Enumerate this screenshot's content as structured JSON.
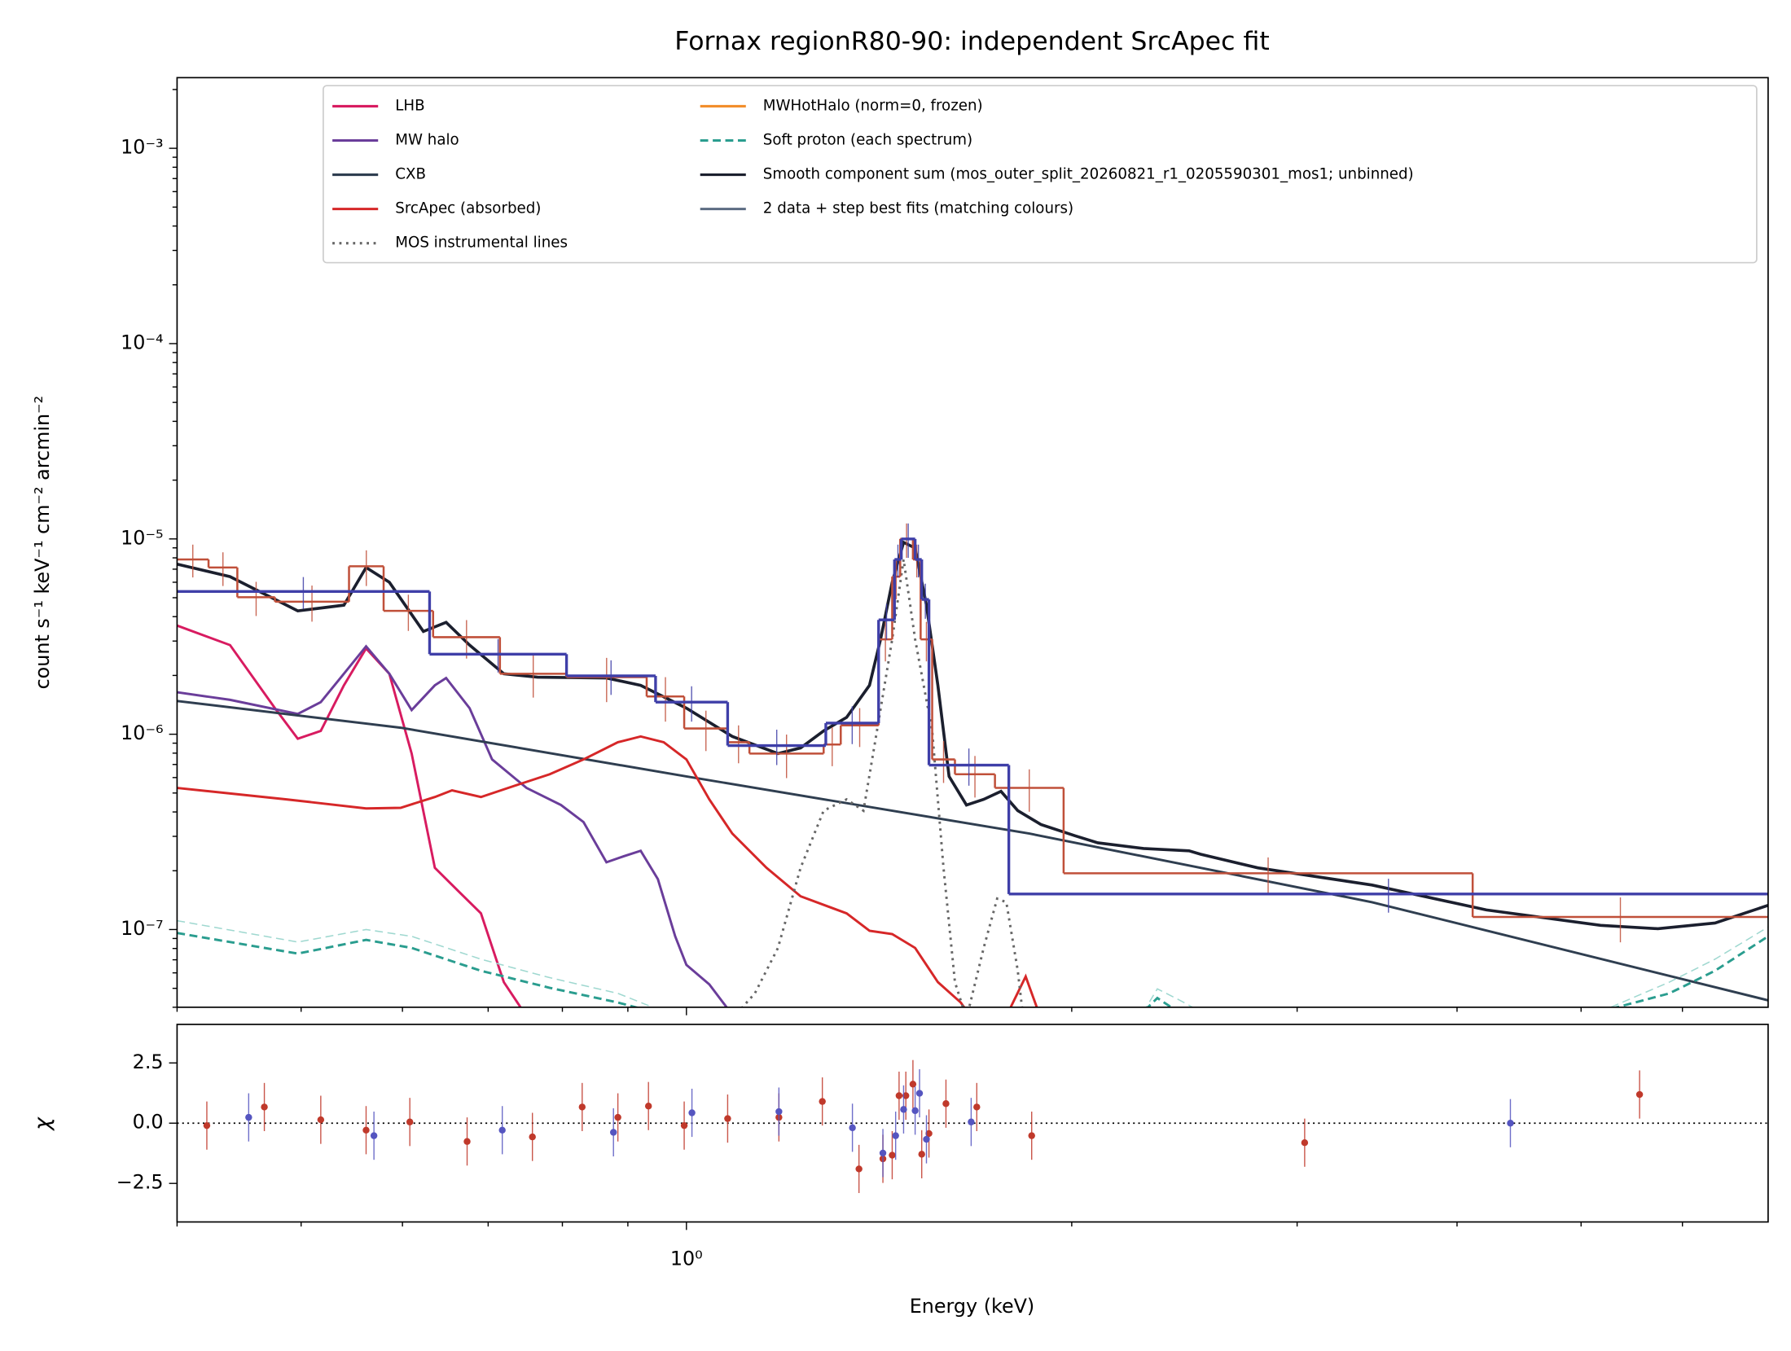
{
  "chart_data": [
    {
      "type": "line",
      "title": "Fornax regionR80-90: independent SrcApec fit",
      "ylabel": "count s⁻¹ keV⁻¹ cm⁻² arcmin⁻²",
      "xscale": "log",
      "yscale": "log",
      "xlim": [
        0.4,
        7.0
      ],
      "ylim": [
        4e-08,
        0.0023
      ],
      "xtickmarks": [
        1
      ],
      "xminorticks": [
        0.4,
        0.5,
        0.6,
        0.7,
        0.8,
        0.9,
        2,
        3,
        4,
        5,
        6
      ],
      "yticks": [
        {
          "value": 1e-07,
          "label": "10⁻⁷"
        },
        {
          "value": 1e-06,
          "label": "10⁻⁶"
        },
        {
          "value": 1e-05,
          "label": "10⁻⁵"
        },
        {
          "value": 0.0001,
          "label": "10⁻⁴"
        },
        {
          "value": 0.001,
          "label": "10⁻³"
        }
      ],
      "yminorticks": [
        4e-08,
        5e-08,
        6e-08,
        7e-08,
        8e-08,
        9e-08,
        2e-07,
        3e-07,
        4e-07,
        5e-07,
        6e-07,
        7e-07,
        8e-07,
        9e-07,
        2e-06,
        3e-06,
        4e-06,
        5e-06,
        6e-06,
        7e-06,
        8e-06,
        9e-06,
        2e-05,
        3e-05,
        4e-05,
        5e-05,
        6e-05,
        7e-05,
        8e-05,
        9e-05,
        0.0002,
        0.0003,
        0.0004,
        0.0005,
        0.0006,
        0.0007,
        0.0008,
        0.0009,
        0.002
      ],
      "legend": "upper right",
      "series": [
        {
          "name": "LHB",
          "color": "#d81b60",
          "dash": "solid",
          "x": [
            0.4,
            0.44,
            0.477,
            0.497,
            0.518,
            0.54,
            0.562,
            0.586,
            0.61,
            0.636,
            0.663,
            0.691,
            0.72,
            0.742
          ],
          "values": [
            3.6e-06,
            2.86e-06,
            1.36e-06,
            9.48e-07,
            1.04e-06,
            1.78e-06,
            2.75e-06,
            2.04e-06,
            7.96e-07,
            2.07e-07,
            1.58e-07,
            1.21e-07,
            5.38e-08,
            4e-08
          ]
        },
        {
          "name": "MW halo",
          "color": "#6a3d9a",
          "dash": "solid",
          "x": [
            0.4,
            0.44,
            0.497,
            0.518,
            0.54,
            0.562,
            0.586,
            0.61,
            0.636,
            0.649,
            0.677,
            0.705,
            0.75,
            0.798,
            0.831,
            0.866,
            0.893,
            0.921,
            0.95,
            0.98,
            1.0,
            1.042,
            1.075
          ],
          "values": [
            1.64e-06,
            1.5e-06,
            1.27e-06,
            1.46e-06,
            2.04e-06,
            2.82e-06,
            2.04e-06,
            1.33e-06,
            1.78e-06,
            1.94e-06,
            1.36e-06,
            7.43e-07,
            5.31e-07,
            4.34e-07,
            3.55e-07,
            2.21e-07,
            2.37e-07,
            2.53e-07,
            1.81e-07,
            9.23e-08,
            6.59e-08,
            5.24e-08,
            4e-08
          ]
        },
        {
          "name": "CXB",
          "color": "#2f3e50",
          "dash": "solid",
          "x": [
            0.4,
            0.598,
            1.0,
            1.853,
            3.433,
            7.0
          ],
          "values": [
            1.48e-06,
            1.08e-06,
            6.08e-07,
            3.1e-07,
            1.38e-07,
            4.34e-08
          ]
        },
        {
          "name": "SrcApec (absorbed)",
          "color": "#d62728",
          "dash": "solid",
          "x": [
            0.4,
            0.487,
            0.562,
            0.598,
            0.636,
            0.656,
            0.691,
            0.735,
            0.782,
            0.831,
            0.884,
            0.921,
            0.96,
            1.0,
            1.042,
            1.086,
            1.155,
            1.228,
            1.334,
            1.39,
            1.448,
            1.509,
            1.572,
            1.638,
            1.672,
            1.778,
            1.841,
            1.892
          ],
          "values": [
            5.31e-07,
            4.64e-07,
            4.17e-07,
            4.2e-07,
            4.77e-07,
            5.16e-07,
            4.77e-07,
            5.46e-07,
            6.24e-07,
            7.43e-07,
            9.1e-07,
            9.74e-07,
            9.1e-07,
            7.43e-07,
            4.64e-07,
            3.1e-07,
            2.07e-07,
            1.48e-07,
            1.21e-07,
            9.86e-08,
            9.48e-08,
            8.05e-08,
            5.38e-08,
            4.23e-08,
            3.5e-08,
            3.6e-08,
            5.75e-08,
            3.5e-08
          ]
        },
        {
          "name": "MOS instrumental lines",
          "color": "#666666",
          "dash": "dotted",
          "x": [
            1.086,
            1.131,
            1.179,
            1.228,
            1.28,
            1.334,
            1.375,
            1.404,
            1.448,
            1.478,
            1.509,
            1.556,
            1.588,
            1.621,
            1.655,
            1.707,
            1.749,
            1.778,
            1.815,
            1.833
          ],
          "values": [
            3.5e-08,
            4.71e-08,
            8.05e-08,
            2.07e-07,
            4.06e-07,
            4.64e-07,
            4.06e-07,
            9.1e-07,
            3.06e-06,
            7.85e-06,
            3.06e-06,
            1.04e-06,
            2.07e-07,
            5.38e-08,
            3.5e-08,
            8.05e-08,
            1.44e-07,
            1.38e-07,
            6.15e-08,
            3.5e-08
          ]
        },
        {
          "name": "MWHotHalo (norm=0, frozen)",
          "color": "#f28e2b",
          "dash": "solid"
        },
        {
          "name": "Soft proton (each spectrum)",
          "color": "#2a9d8f",
          "dash": "dashed",
          "x": [
            0.4,
            0.497,
            0.562,
            0.61,
            0.691,
            0.782,
            0.884,
            0.94,
            1.5,
            2.276,
            2.333,
            2.42,
            3.5,
            5.179,
            5.86,
            6.362,
            7.0
          ],
          "values": [
            9.6e-08,
            7.53e-08,
            8.85e-08,
            8.05e-08,
            6.15e-08,
            5.03e-08,
            4.23e-08,
            3.8e-08,
            2e-08,
            3.8e-08,
            4.46e-08,
            3.8e-08,
            2e-08,
            3.8e-08,
            4.71e-08,
            6.15e-08,
            9.23e-08
          ]
        },
        {
          "name": "Smooth component sum (mos_outer_split_20260821_r1_0205590301_mos1; unbinned)",
          "color": "#1b1f2e",
          "dash": "solid",
          "x": [
            0.4,
            0.44,
            0.497,
            0.54,
            0.562,
            0.586,
            0.623,
            0.649,
            0.677,
            0.72,
            0.765,
            0.866,
            0.921,
            1.0,
            1.086,
            1.179,
            1.228,
            1.28,
            1.334,
            1.39,
            1.418,
            1.448,
            1.478,
            1.509,
            1.54,
            1.572,
            1.604,
            1.655,
            1.707,
            1.761,
            1.815,
            1.892,
            2.012,
            2.096,
            2.276,
            2.47,
            2.522,
            2.795,
            3.433,
            4.217,
            5.179,
            5.74,
            6.362,
            7.0
          ],
          "values": [
            7.43e-06,
            6.41e-06,
            4.28e-06,
            4.58e-06,
            7.14e-06,
            6e-06,
            3.36e-06,
            3.74e-06,
            2.86e-06,
            2.04e-06,
            1.96e-06,
            1.94e-06,
            1.78e-06,
            1.36e-06,
            9.74e-07,
            7.96e-07,
            8.51e-07,
            1.04e-06,
            1.22e-06,
            1.78e-06,
            3.06e-06,
            6e-06,
            9.6e-06,
            8.98e-06,
            4.58e-06,
            1.78e-06,
            6.08e-07,
            4.34e-07,
            4.64e-07,
            5.1e-07,
            4.06e-07,
            3.45e-07,
            3.02e-07,
            2.78e-07,
            2.6e-07,
            2.53e-07,
            2.43e-07,
            2.07e-07,
            1.69e-07,
            1.26e-07,
            1.05e-07,
            1.01e-07,
            1.08e-07,
            1.33e-07
          ]
        },
        {
          "color": "#9fd8d0",
          "dash": "dashed",
          "x": [
            0.4,
            0.497,
            0.562,
            0.61,
            0.691,
            0.782,
            0.884,
            0.96,
            1.5,
            2.276,
            2.333,
            2.42,
            2.522,
            3.5,
            5.179,
            5.86,
            6.362,
            7.0
          ],
          "values": [
            1.11e-07,
            8.63e-08,
            1e-07,
            9.23e-08,
            7.05e-08,
            5.67e-08,
            4.71e-08,
            3.8e-08,
            2e-08,
            3.8e-08,
            4.97e-08,
            4.4e-08,
            3.8e-08,
            2e-08,
            3.8e-08,
            5.38e-08,
            7.05e-08,
            1.03e-07
          ]
        }
      ],
      "data_legend": {
        "name": "2 data + step best fits (matching colours)",
        "color": "#5b6b82"
      },
      "data": [
        {
          "color": "#c0503a",
          "bins": [
            0.4,
            0.4233,
            0.4458,
            0.477,
            0.545,
            0.58,
            0.634,
            0.715,
            0.806,
            0.931,
            0.996,
            1.077,
            1.12,
            1.28,
            1.32,
            1.413,
            1.448,
            1.469,
            1.503,
            1.524,
            1.556,
            1.621,
            1.742,
            1.971,
            4.114,
            7.0
          ],
          "values": [
            7.85e-06,
            7.14e-06,
            5.03e-06,
            4.77e-06,
            7.24e-06,
            4.28e-06,
            3.14e-06,
            2.04e-06,
            1.96e-06,
            1.56e-06,
            1.07e-06,
            9.1e-07,
            7.96e-07,
            8.86e-07,
            1.11e-06,
            3.06e-06,
            6.41e-06,
            1e-05,
            7.85e-06,
            3.06e-06,
            7.43e-07,
            6.24e-07,
            5.31e-07,
            1.94e-07,
            1.16e-07
          ],
          "errors": [
            1.5e-06,
            1.4e-06,
            1e-06,
            1e-06,
            1.5e-06,
            9e-07,
            7e-07,
            5e-07,
            5e-07,
            4e-07,
            2.5e-07,
            2e-07,
            2e-07,
            2e-07,
            2.5e-07,
            7e-07,
            1.5e-06,
            2e-06,
            1.5e-06,
            7e-07,
            1.8e-07,
            1.5e-07,
            1.3e-07,
            4e-08,
            3e-08
          ]
        },
        {
          "color": "#3f3fa8",
          "bins": [
            0.4,
            0.63,
            0.806,
            0.946,
            1.077,
            1.285,
            1.413,
            1.454,
            1.472,
            1.509,
            1.527,
            1.547,
            1.786,
            7.0
          ],
          "values": [
            5.38e-06,
            2.57e-06,
            1.99e-06,
            1.46e-06,
            8.75e-07,
            1.14e-06,
            3.85e-06,
            7.85e-06,
            1e-05,
            7.85e-06,
            4.9e-06,
            6.95e-07,
            1.52e-07
          ],
          "errors": [
            1e-06,
            5e-07,
            4e-07,
            3e-07,
            1.8e-07,
            2.5e-07,
            8e-07,
            1.5e-06,
            2e-06,
            1.5e-06,
            1e-06,
            1.5e-07,
            3e-08
          ]
        }
      ]
    },
    {
      "type": "scatter",
      "xlabel": "Energy (keV)",
      "ylabel": "χ",
      "xscale": "log",
      "yscale": "linear",
      "xlim": [
        0.4,
        7.0
      ],
      "ylim": [
        -4.1,
        4.1
      ],
      "xticks": [
        {
          "value": 1,
          "label": "10⁰"
        }
      ],
      "xminorticks": [
        0.4,
        0.5,
        0.6,
        0.7,
        0.8,
        0.9,
        2,
        3,
        4,
        5,
        6
      ],
      "yticks": [
        {
          "value": -2.5,
          "label": "−2.5"
        },
        {
          "value": 0,
          "label": "0.0"
        },
        2.5
      ],
      "hline": 0,
      "series": [
        {
          "color": "#c0392b",
          "x": [
            0.422,
            0.468,
            0.518,
            0.562,
            0.608,
            0.674,
            0.758,
            0.829,
            0.884,
            0.934,
            0.996,
            1.077,
            1.181,
            1.277,
            1.364,
            1.424,
            1.448,
            1.466,
            1.484,
            1.503,
            1.527,
            1.547,
            1.595,
            1.686,
            1.861,
            3.041,
            5.555
          ],
          "values": [
            -0.1,
            0.67,
            0.14,
            -0.29,
            0.05,
            -0.76,
            -0.57,
            0.67,
            0.24,
            0.71,
            -0.1,
            0.19,
            0.24,
            0.9,
            -1.9,
            -1.48,
            -1.33,
            1.14,
            1.14,
            1.62,
            -1.29,
            -0.43,
            0.81,
            0.67,
            -0.52,
            -0.81,
            1.19
          ],
          "errors": [
            1,
            1,
            1,
            1,
            1,
            1,
            1,
            1,
            1,
            1,
            1,
            1,
            1,
            1,
            1,
            1,
            1,
            1,
            1,
            1,
            1,
            1,
            1,
            1,
            1,
            1,
            1
          ]
        },
        {
          "color": "#5555c0",
          "x": [
            0.455,
            0.57,
            0.718,
            0.877,
            1.01,
            1.181,
            1.348,
            1.424,
            1.457,
            1.478,
            1.509,
            1.521,
            1.54,
            1.669,
            4.403
          ],
          "values": [
            0.24,
            -0.52,
            -0.29,
            -0.38,
            0.43,
            0.48,
            -0.19,
            -1.24,
            -0.52,
            0.57,
            0.52,
            1.24,
            -0.67,
            0.05,
            0
          ],
          "errors": [
            1,
            1,
            1,
            1,
            1,
            1,
            1,
            1,
            1,
            1,
            1,
            1,
            1,
            1,
            1
          ]
        }
      ]
    }
  ]
}
